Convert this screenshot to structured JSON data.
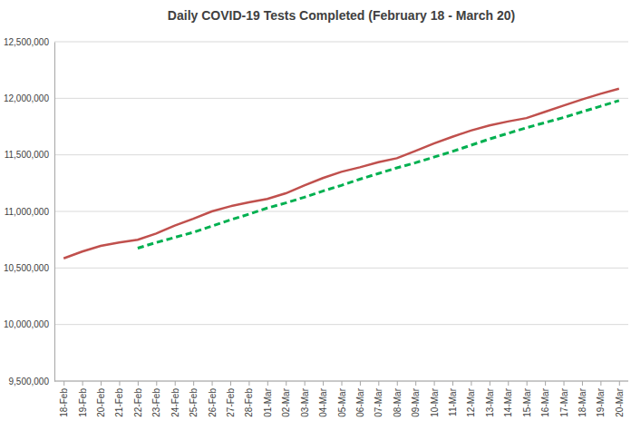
{
  "chart_data": {
    "type": "line",
    "title": "Daily COVID-19 Tests Completed (February 18 - March 20)",
    "categories": [
      "18-Feb",
      "19-Feb",
      "20-Feb",
      "21-Feb",
      "22-Feb",
      "23-Feb",
      "24-Feb",
      "25-Feb",
      "26-Feb",
      "27-Feb",
      "28-Feb",
      "01-Mar",
      "02-Mar",
      "03-Mar",
      "04-Mar",
      "05-Mar",
      "06-Mar",
      "07-Mar",
      "08-Mar",
      "09-Mar",
      "10-Mar",
      "11-Mar",
      "12-Mar",
      "13-Mar",
      "14-Mar",
      "15-Mar",
      "16-Mar",
      "17-Mar",
      "18-Mar",
      "19-Mar",
      "20-Mar"
    ],
    "series": [
      {
        "color": "#c0504d",
        "line_style": "solid",
        "values": [
          10585000,
          10645000,
          10695000,
          10725000,
          10750000,
          10805000,
          10875000,
          10935000,
          11000000,
          11045000,
          11080000,
          11110000,
          11160000,
          11230000,
          11295000,
          11350000,
          11390000,
          11435000,
          11470000,
          11535000,
          11600000,
          11660000,
          11715000,
          11760000,
          11795000,
          11825000,
          11880000,
          11935000,
          11990000,
          12040000,
          12085000
        ]
      },
      {
        "color": "#00b050",
        "line_style": "dashed",
        "values": [
          null,
          null,
          null,
          null,
          10675000,
          10725000,
          10770000,
          10815000,
          10870000,
          10925000,
          10975000,
          11030000,
          11075000,
          11125000,
          11180000,
          11230000,
          11285000,
          11335000,
          11385000,
          11430000,
          11480000,
          11530000,
          11585000,
          11640000,
          11690000,
          11740000,
          11785000,
          11830000,
          11880000,
          11930000,
          11980000
        ]
      }
    ],
    "ylim": [
      9500000,
      12500000
    ],
    "yticks": [
      {
        "value": 9500000,
        "label": "9,500,000"
      },
      {
        "value": 10000000,
        "label": "10,000,000"
      },
      {
        "value": 10500000,
        "label": "10,500,000"
      },
      {
        "value": 11000000,
        "label": "11,000,000"
      },
      {
        "value": 11500000,
        "label": "11,500,000"
      },
      {
        "value": 12000000,
        "label": "12,000,000"
      },
      {
        "value": 12500000,
        "label": "12,500,000"
      }
    ],
    "grid": true
  }
}
